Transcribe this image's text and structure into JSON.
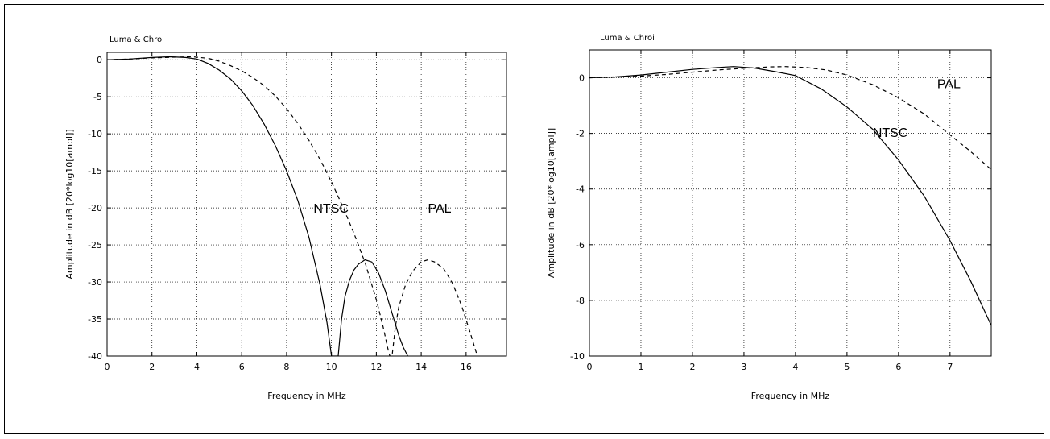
{
  "chart_data": [
    {
      "type": "line",
      "title": "Luma & Chro",
      "xlabel": "Frequency in MHz",
      "ylabel": "Amplitude in dB [20*log10[ampl]]",
      "xlim": [
        0,
        17.8
      ],
      "ylim": [
        -40,
        1
      ],
      "xticks": [
        0,
        2,
        4,
        6,
        8,
        10,
        12,
        14,
        16
      ],
      "yticks": [
        0,
        -5,
        -10,
        -15,
        -20,
        -25,
        -30,
        -35,
        -40
      ],
      "grid": true,
      "annotations": [
        {
          "text": "NTSC",
          "x": 9.2,
          "y": -20
        },
        {
          "text": "PAL",
          "x": 14.3,
          "y": -20
        }
      ],
      "series": [
        {
          "name": "NTSC",
          "style": "solid",
          "x": [
            0,
            1,
            2,
            2.8,
            3.5,
            4,
            4.5,
            5,
            5.5,
            6,
            6.5,
            7,
            7.5,
            8,
            8.5,
            9,
            9.5,
            9.8,
            10,
            10.15,
            10.25,
            10.3,
            10.45,
            10.6,
            10.8,
            11,
            11.2,
            11.5,
            11.8,
            12.1,
            12.4,
            12.7,
            13,
            13.2,
            13.4
          ],
          "y": [
            0,
            0.1,
            0.3,
            0.4,
            0.3,
            0.1,
            -0.5,
            -1.4,
            -2.6,
            -4.2,
            -6.2,
            -8.7,
            -11.6,
            -15,
            -19,
            -24,
            -30.5,
            -35.5,
            -40,
            -40,
            -40,
            -40,
            -35,
            -32,
            -29.8,
            -28.4,
            -27.6,
            -27,
            -27.3,
            -28.8,
            -31.2,
            -34.2,
            -37.2,
            -38.8,
            -40
          ]
        },
        {
          "name": "PAL",
          "style": "dashed",
          "x": [
            0,
            1,
            2,
            3,
            3.8,
            4.5,
            5,
            5.5,
            6,
            6.5,
            7,
            7.5,
            8,
            8.5,
            9,
            9.5,
            10,
            10.5,
            11,
            11.5,
            12,
            12.3,
            12.5,
            12.6,
            12.7,
            12.85,
            13,
            13.3,
            13.6,
            14,
            14.3,
            14.6,
            15,
            15.4,
            15.8,
            16.2,
            16.5
          ],
          "y": [
            0,
            0.1,
            0.25,
            0.35,
            0.4,
            0.2,
            -0.2,
            -0.8,
            -1.5,
            -2.4,
            -3.5,
            -4.9,
            -6.6,
            -8.6,
            -10.9,
            -13.5,
            -16.5,
            -19.8,
            -23.4,
            -27.4,
            -32.4,
            -36,
            -38.8,
            -40,
            -40,
            -36,
            -33.4,
            -30.4,
            -28.6,
            -27.3,
            -27,
            -27.3,
            -28.2,
            -30.2,
            -33.2,
            -37,
            -40
          ]
        }
      ]
    },
    {
      "type": "line",
      "title": "Luma & Chroi",
      "xlabel": "Frequency in MHz",
      "ylabel": "Amplitude in dB [20*log10[ampl]]",
      "xlim": [
        0,
        7.8
      ],
      "ylim": [
        -10,
        1
      ],
      "xticks": [
        0,
        1,
        2,
        3,
        4,
        5,
        6,
        7
      ],
      "yticks": [
        0,
        -2,
        -4,
        -6,
        -8,
        -10
      ],
      "grid": true,
      "annotations": [
        {
          "text": "PAL",
          "x": 6.75,
          "y": -0.2
        },
        {
          "text": "NTSC",
          "x": 5.5,
          "y": -1.95
        }
      ],
      "series": [
        {
          "name": "NTSC",
          "style": "solid",
          "x": [
            0,
            0.5,
            1,
            1.5,
            2,
            2.5,
            2.8,
            3.2,
            3.6,
            4,
            4.5,
            5,
            5.5,
            6,
            6.5,
            7,
            7.4,
            7.8
          ],
          "y": [
            0,
            0.03,
            0.1,
            0.2,
            0.3,
            0.37,
            0.4,
            0.35,
            0.22,
            0.08,
            -0.4,
            -1.05,
            -1.85,
            -2.95,
            -4.25,
            -5.85,
            -7.3,
            -8.9
          ]
        },
        {
          "name": "PAL",
          "style": "dashed",
          "x": [
            0,
            0.5,
            1,
            1.5,
            2,
            2.5,
            3,
            3.5,
            3.8,
            4.2,
            4.6,
            5,
            5.5,
            6,
            6.5,
            7,
            7.4,
            7.8
          ],
          "y": [
            0,
            0.02,
            0.06,
            0.12,
            0.2,
            0.28,
            0.34,
            0.39,
            0.4,
            0.37,
            0.28,
            0.1,
            -0.25,
            -0.72,
            -1.3,
            -2.05,
            -2.65,
            -3.3
          ]
        }
      ]
    }
  ]
}
